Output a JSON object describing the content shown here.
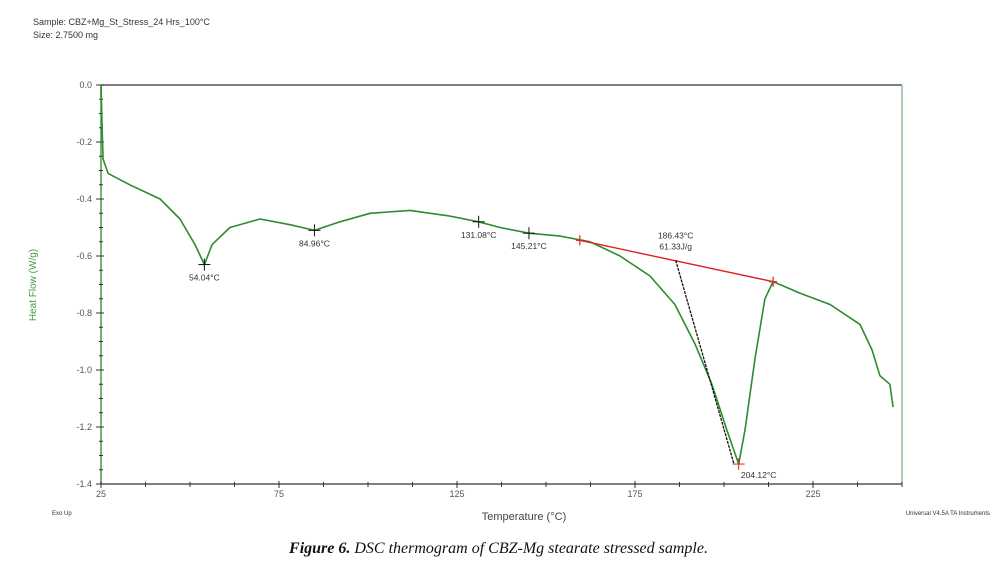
{
  "header": {
    "sample": "Sample: CBZ+Mg_St_Stress_24 Hrs_100°C",
    "size": "Size: 2.7500 mg"
  },
  "footer": {
    "left_note": "Exo Up",
    "right_note": "Universal V4.5A TA Instruments"
  },
  "caption": {
    "label": "Figure 6.",
    "text": " DSC thermogram of CBZ-Mg stearate stressed sample."
  },
  "colors": {
    "curve": "#2e8b2e",
    "axis_green": "#4a9a4a",
    "baseline": "#dd2222",
    "tangent": "#111111",
    "axis": "#444444"
  },
  "chart_data": {
    "type": "line",
    "title": "",
    "xlabel": "Temperature (°C)",
    "ylabel": "Heat Flow (W/g)",
    "xlim": [
      25,
      250
    ],
    "ylim": [
      -1.4,
      0.0
    ],
    "xticks": [
      25,
      75,
      125,
      175,
      225
    ],
    "xtick_labels": [
      "25",
      "75",
      "125",
      "175",
      "225"
    ],
    "yticks": [
      0.0,
      -0.2,
      -0.4,
      -0.6,
      -0.8,
      -1.0,
      -1.2,
      -1.4
    ],
    "ytick_labels": [
      "0.0",
      "-0.2",
      "-0.4",
      "-0.6",
      "-0.8",
      "-1.0",
      "-1.2",
      "-1.4"
    ],
    "grid": false,
    "series": [
      {
        "name": "Heat Flow",
        "x": [
          25,
          25.3,
          25.6,
          27.0,
          33.1,
          41.6,
          47.2,
          51.4,
          54.04,
          56.2,
          61.2,
          69.7,
          78.1,
          84.96,
          92.1,
          100.6,
          111.8,
          123.0,
          131.08,
          137.1,
          145.21,
          154,
          162.4,
          170.8,
          179.2,
          186.2,
          191.9,
          196.6,
          200.8,
          204.12,
          205.9,
          208.7,
          211.5,
          213.8,
          221.3,
          229.8,
          238.2,
          241.6,
          243.8,
          246.6,
          247.5
        ],
        "y": [
          0.0,
          -0.15,
          -0.26,
          -0.31,
          -0.35,
          -0.4,
          -0.47,
          -0.56,
          -0.63,
          -0.56,
          -0.5,
          -0.47,
          -0.49,
          -0.51,
          -0.48,
          -0.45,
          -0.44,
          -0.46,
          -0.48,
          -0.5,
          -0.52,
          -0.53,
          -0.55,
          -0.6,
          -0.67,
          -0.77,
          -0.91,
          -1.05,
          -1.21,
          -1.33,
          -1.21,
          -0.96,
          -0.75,
          -0.69,
          -0.73,
          -0.77,
          -0.84,
          -0.93,
          -1.02,
          -1.05,
          -1.13
        ]
      }
    ],
    "baseline": {
      "x": [
        159.5,
        213.8
      ],
      "y": [
        -0.545,
        -0.69
      ]
    },
    "tangent": {
      "x": [
        186.43,
        202.8
      ],
      "y": [
        -0.615,
        -1.33
      ]
    },
    "annotations": [
      {
        "text": "54.04°C",
        "x": 54.04,
        "y": -0.63,
        "label_pos": "below"
      },
      {
        "text": "84.96°C",
        "x": 84.96,
        "y": -0.51,
        "label_pos": "below"
      },
      {
        "text": "131.08°C",
        "x": 131.08,
        "y": -0.48,
        "label_pos": "below"
      },
      {
        "text": "145.21°C",
        "x": 145.21,
        "y": -0.52,
        "label_pos": "below"
      },
      {
        "text": "204.12°C",
        "x": 204.12,
        "y": -1.33,
        "label_pos": "below-right"
      }
    ],
    "onset": {
      "temperature": "186.43°C",
      "enthalpy": "61.33J/g",
      "x": 186.43,
      "y": -0.615
    }
  }
}
